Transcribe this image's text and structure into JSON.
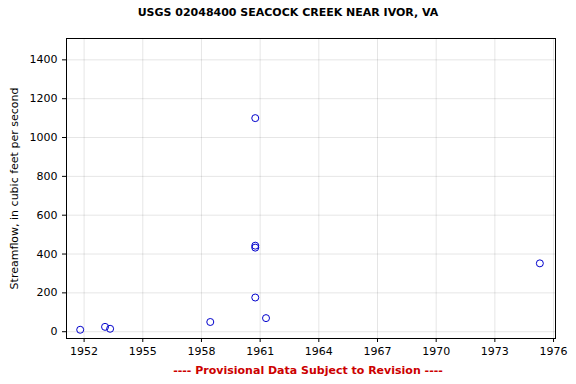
{
  "chart_data": {
    "type": "scatter",
    "title": "USGS 02048400 SEACOCK CREEK NEAR IVOR, VA",
    "y_label": "Streamflow, in cubic feet per second",
    "caption": "---- Provisional Data Subject to Revision ----",
    "x": [
      1951.8,
      1953.07,
      1953.33,
      1958.45,
      1960.75,
      1960.75,
      1960.75,
      1960.75,
      1961.3,
      1975.3
    ],
    "values": [
      10,
      25,
      15,
      50,
      1100,
      443,
      433,
      176,
      70,
      352
    ],
    "color": "#0000cc",
    "marker": "open-circle",
    "xlim": [
      1951.1,
      1976.1
    ],
    "xticks": [
      1952,
      1955,
      1958,
      1961,
      1964,
      1967,
      1970,
      1973,
      1976
    ],
    "ylim": [
      -35,
      1510
    ],
    "yticks": [
      0,
      200,
      400,
      600,
      800,
      1000,
      1200,
      1400
    ],
    "grid": true
  }
}
